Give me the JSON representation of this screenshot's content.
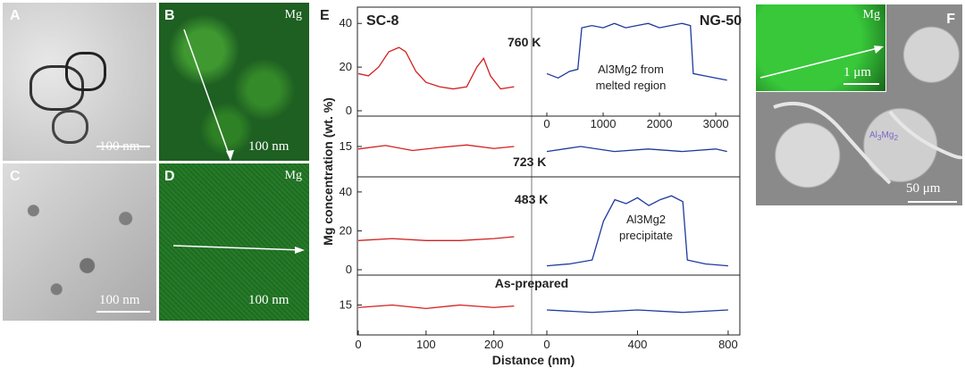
{
  "panels": {
    "A": {
      "letter": "A",
      "scale": "100 nm"
    },
    "B": {
      "letter": "B",
      "element": "Mg",
      "scale": "100 nm"
    },
    "C": {
      "letter": "C",
      "scale": "100 nm"
    },
    "D": {
      "letter": "D",
      "element": "Mg",
      "scale": "100 nm"
    },
    "F": {
      "letter": "F",
      "element": "Mg",
      "inset_scale": "1 μm",
      "scale": "50 μm",
      "label": "Al3Mg2"
    }
  },
  "chart_data": {
    "type": "line",
    "panel_letter": "E",
    "ylabel": "Mg concentration (wt. %)",
    "xlabel": "Distance (nm)",
    "left_title": "SC-8",
    "right_title": "NG-50",
    "left_color": "#d32020",
    "right_color": "#1e3a9c",
    "rows": [
      {
        "label": "760 K",
        "yticks": [
          0,
          20,
          40
        ],
        "ylim": [
          0,
          45
        ],
        "annotation": [
          "Al3Mg2 from",
          "melted region"
        ],
        "right_axis": {
          "xlim": [
            0,
            3300
          ],
          "ticks": [
            0,
            1000,
            2000,
            3000
          ]
        },
        "left_series": [
          [
            0,
            17
          ],
          [
            15,
            16
          ],
          [
            30,
            20
          ],
          [
            45,
            27
          ],
          [
            60,
            29
          ],
          [
            70,
            27
          ],
          [
            85,
            18
          ],
          [
            100,
            13
          ],
          [
            120,
            11
          ],
          [
            140,
            10
          ],
          [
            160,
            11
          ],
          [
            175,
            20
          ],
          [
            185,
            24
          ],
          [
            195,
            16
          ],
          [
            210,
            10
          ],
          [
            230,
            11
          ]
        ],
        "right_series": [
          [
            0,
            17
          ],
          [
            200,
            15
          ],
          [
            400,
            18
          ],
          [
            550,
            19
          ],
          [
            620,
            38
          ],
          [
            800,
            39
          ],
          [
            1000,
            38
          ],
          [
            1200,
            40
          ],
          [
            1400,
            38
          ],
          [
            1600,
            39
          ],
          [
            1800,
            40
          ],
          [
            2000,
            38
          ],
          [
            2200,
            39
          ],
          [
            2400,
            40
          ],
          [
            2550,
            39
          ],
          [
            2600,
            17
          ],
          [
            2800,
            16
          ],
          [
            3000,
            15
          ],
          [
            3200,
            14
          ]
        ]
      },
      {
        "label": "723 K",
        "yticks": [
          15
        ],
        "ylim": [
          10,
          20
        ],
        "left_series": [
          [
            0,
            14.5
          ],
          [
            40,
            15.2
          ],
          [
            80,
            14.2
          ],
          [
            120,
            14.8
          ],
          [
            160,
            15.3
          ],
          [
            200,
            14.6
          ],
          [
            230,
            15
          ]
        ],
        "right_series": [
          [
            0,
            14
          ],
          [
            600,
            15
          ],
          [
            1200,
            14
          ],
          [
            1800,
            14.5
          ],
          [
            2400,
            14
          ],
          [
            3000,
            14.5
          ],
          [
            3200,
            14
          ]
        ]
      },
      {
        "label": "483 K",
        "yticks": [
          0,
          20,
          40
        ],
        "ylim": [
          0,
          45
        ],
        "annotation": [
          "Al3Mg2",
          "precipitate"
        ],
        "left_series": [
          [
            0,
            15
          ],
          [
            50,
            16
          ],
          [
            100,
            15
          ],
          [
            150,
            15
          ],
          [
            200,
            16
          ],
          [
            230,
            17
          ]
        ],
        "right_series": [
          [
            0,
            2
          ],
          [
            100,
            3
          ],
          [
            200,
            5
          ],
          [
            250,
            25
          ],
          [
            300,
            36
          ],
          [
            350,
            34
          ],
          [
            400,
            37
          ],
          [
            450,
            33
          ],
          [
            500,
            36
          ],
          [
            550,
            38
          ],
          [
            600,
            35
          ],
          [
            620,
            5
          ],
          [
            700,
            3
          ],
          [
            800,
            2
          ]
        ]
      },
      {
        "label": "As-prepared",
        "yticks": [
          15
        ],
        "ylim": [
          10,
          20
        ],
        "left_axis": {
          "xlim": [
            0,
            240
          ],
          "ticks": [
            0,
            100,
            200
          ]
        },
        "right_axis": {
          "xlim": [
            0,
            820
          ],
          "ticks": [
            0,
            400,
            800
          ]
        },
        "left_series": [
          [
            0,
            14.5
          ],
          [
            50,
            15
          ],
          [
            100,
            14.3
          ],
          [
            150,
            15
          ],
          [
            200,
            14.5
          ],
          [
            230,
            14.8
          ]
        ],
        "right_series": [
          [
            0,
            14
          ],
          [
            200,
            13.5
          ],
          [
            400,
            14
          ],
          [
            600,
            13.5
          ],
          [
            800,
            14
          ]
        ]
      }
    ]
  }
}
